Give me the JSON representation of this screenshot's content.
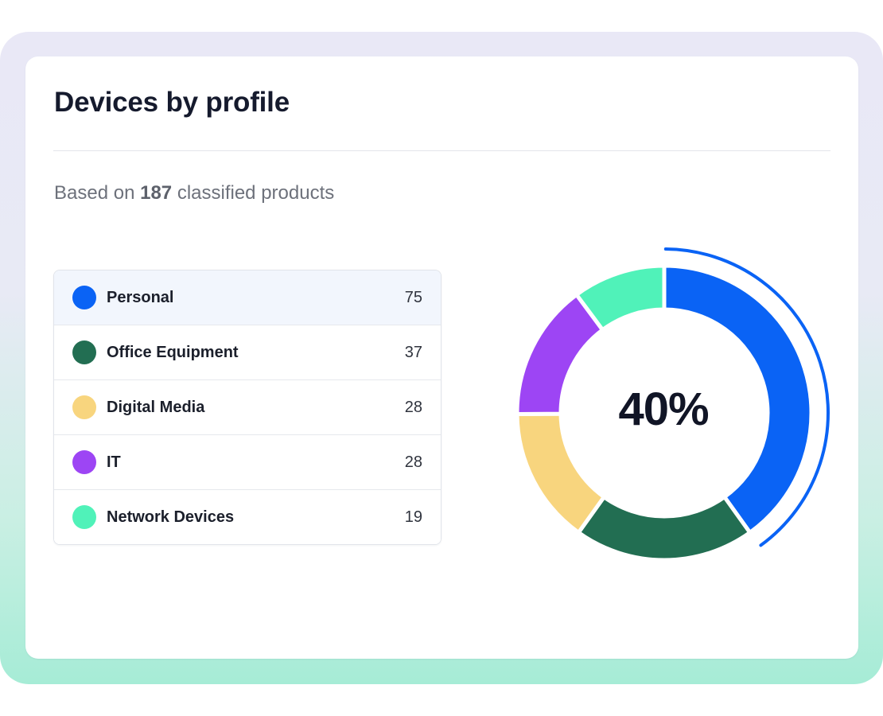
{
  "card": {
    "title": "Devices by profile",
    "subtitle_prefix": "Based on",
    "subtitle_count": "187",
    "subtitle_suffix": "classified products"
  },
  "chart_data": {
    "type": "pie",
    "style": "donut",
    "total": 187,
    "categories": [
      "Personal",
      "Office Equipment",
      "Digital Media",
      "IT",
      "Network Devices"
    ],
    "values": [
      75,
      37,
      28,
      28,
      19
    ],
    "colors": [
      "#0a63f5",
      "#226e52",
      "#f8d57e",
      "#9d45f4",
      "#50f2b9"
    ],
    "center_label": "40%",
    "highlighted": "Personal",
    "legend_position": "left"
  }
}
